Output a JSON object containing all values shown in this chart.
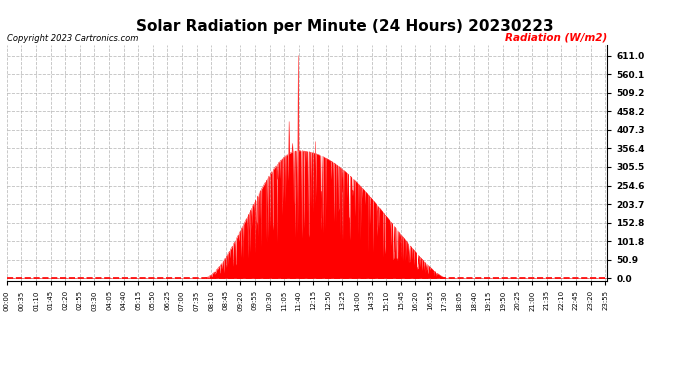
{
  "title": "Solar Radiation per Minute (24 Hours) 20230223",
  "ylabel": "Radiation (W/m2)",
  "copyright_text": "Copyright 2023 Cartronics.com",
  "yticks": [
    0.0,
    50.9,
    101.8,
    152.8,
    203.7,
    254.6,
    305.5,
    356.4,
    407.3,
    458.2,
    509.2,
    560.1,
    611.0
  ],
  "ymax": 640,
  "ymin": -8,
  "fill_color": "#ff0000",
  "line_color": "#ff0000",
  "grid_color": "#b0b0b0",
  "title_fontsize": 11,
  "ylabel_color": "#ff0000",
  "copyright_color": "#000000",
  "bg_color": "#ffffff",
  "dashed_line_color": "#ff0000",
  "num_minutes": 1440,
  "sunrise_min": 470,
  "sunset_min": 1055,
  "peak_min": 700
}
